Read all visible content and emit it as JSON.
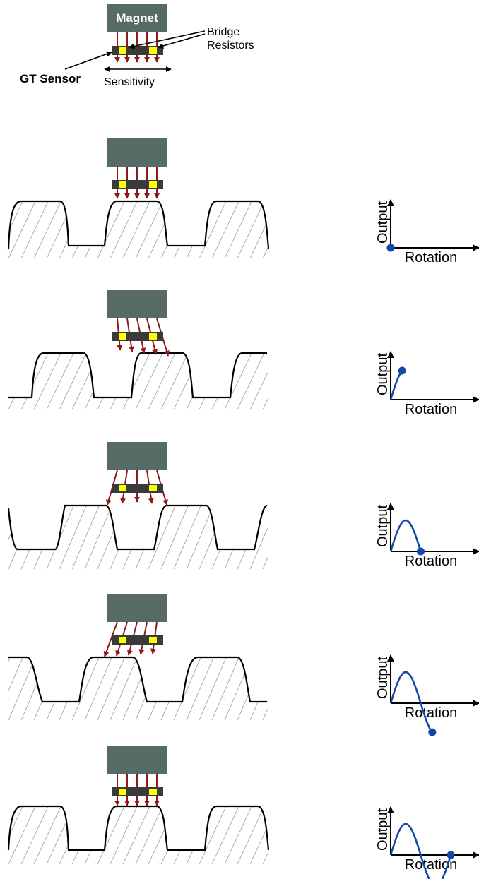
{
  "legend": {
    "magnet_label": "Magnet",
    "bridge_label_line1": "Bridge",
    "bridge_label_line2": "Resistors",
    "sensor_label": "GT Sensor",
    "sensitivity_label": "Sensitivity"
  },
  "axes": {
    "y_label": "Output",
    "x_label": "Rotation"
  },
  "colors": {
    "magnet": "#566b66",
    "sensor_bar": "#3a3a3a",
    "resistor": "#ffff00",
    "field_lines": "#8b1a1a",
    "curve": "#1448a8",
    "gear": "#000000",
    "hatch": "#999999"
  },
  "frames": [
    {
      "gear_phase": "tooth",
      "field": "straight",
      "marker": "origin"
    },
    {
      "gear_phase": "rising",
      "field": "right",
      "marker": "peak-rising"
    },
    {
      "gear_phase": "gap",
      "field": "fan",
      "marker": "zero-cross"
    },
    {
      "gear_phase": "falling",
      "field": "left",
      "marker": "trough-falling"
    },
    {
      "gear_phase": "tooth",
      "field": "straight",
      "marker": "full-cycle"
    }
  ]
}
